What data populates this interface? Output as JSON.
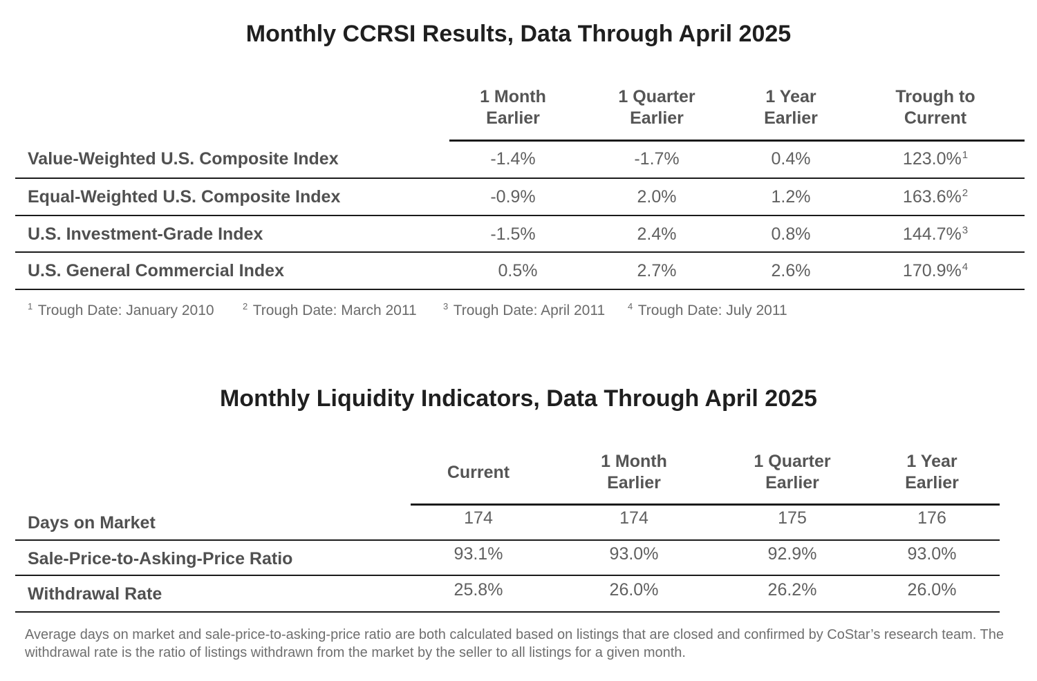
{
  "table1": {
    "title": "Monthly CCRSI Results, Data Through April 2025",
    "columns": [
      {
        "line1": "1 Month",
        "line2": "Earlier"
      },
      {
        "line1": "1 Quarter",
        "line2": "Earlier"
      },
      {
        "line1": "1 Year",
        "line2": "Earlier"
      },
      {
        "line1": "Trough to",
        "line2": "Current"
      }
    ],
    "rows": [
      {
        "label": "Value-Weighted U.S. Composite Index",
        "values": [
          "-1.4%",
          "-1.7%",
          "0.4%",
          "123.0%"
        ],
        "mark": "1"
      },
      {
        "label": "Equal-Weighted U.S. Composite Index",
        "values": [
          "-0.9%",
          "2.0%",
          "1.2%",
          "163.6%"
        ],
        "mark": "2"
      },
      {
        "label": "U.S. Investment-Grade Index",
        "values": [
          "-1.5%",
          "2.4%",
          "0.8%",
          "144.7%"
        ],
        "mark": "3"
      },
      {
        "label": "U.S. General Commercial Index",
        "values": [
          "0.5%",
          "2.7%",
          "2.6%",
          "170.9%"
        ],
        "mark": "4"
      }
    ],
    "footnotes": [
      {
        "mark": "1",
        "text": " Trough Date: January 2010"
      },
      {
        "mark": "2",
        "text": " Trough Date: March 2011"
      },
      {
        "mark": "3",
        "text": " Trough Date: April 2011"
      },
      {
        "mark": "4",
        "text": " Trough Date: July 2011"
      }
    ]
  },
  "table2": {
    "title": "Monthly Liquidity Indicators, Data Through April 2025",
    "columns": [
      {
        "line1": "Current",
        "line2": ""
      },
      {
        "line1": "1 Month",
        "line2": "Earlier"
      },
      {
        "line1": "1 Quarter",
        "line2": "Earlier"
      },
      {
        "line1": "1 Year",
        "line2": "Earlier"
      }
    ],
    "rows": [
      {
        "label": "Days on Market",
        "values": [
          "174",
          "174",
          "175",
          "176"
        ]
      },
      {
        "label": "Sale-Price-to-Asking-Price Ratio",
        "values": [
          "93.1%",
          "93.0%",
          "92.9%",
          "93.0%"
        ]
      },
      {
        "label": "Withdrawal Rate",
        "values": [
          "25.8%",
          "26.0%",
          "26.2%",
          "26.0%"
        ]
      }
    ],
    "note": "Average days on market and sale-price-to-asking-price ratio are both calculated based on listings that are closed and confirmed by CoStar’s research team. The withdrawal rate is the ratio of listings withdrawn from the market by the seller to all listings for a given month."
  }
}
